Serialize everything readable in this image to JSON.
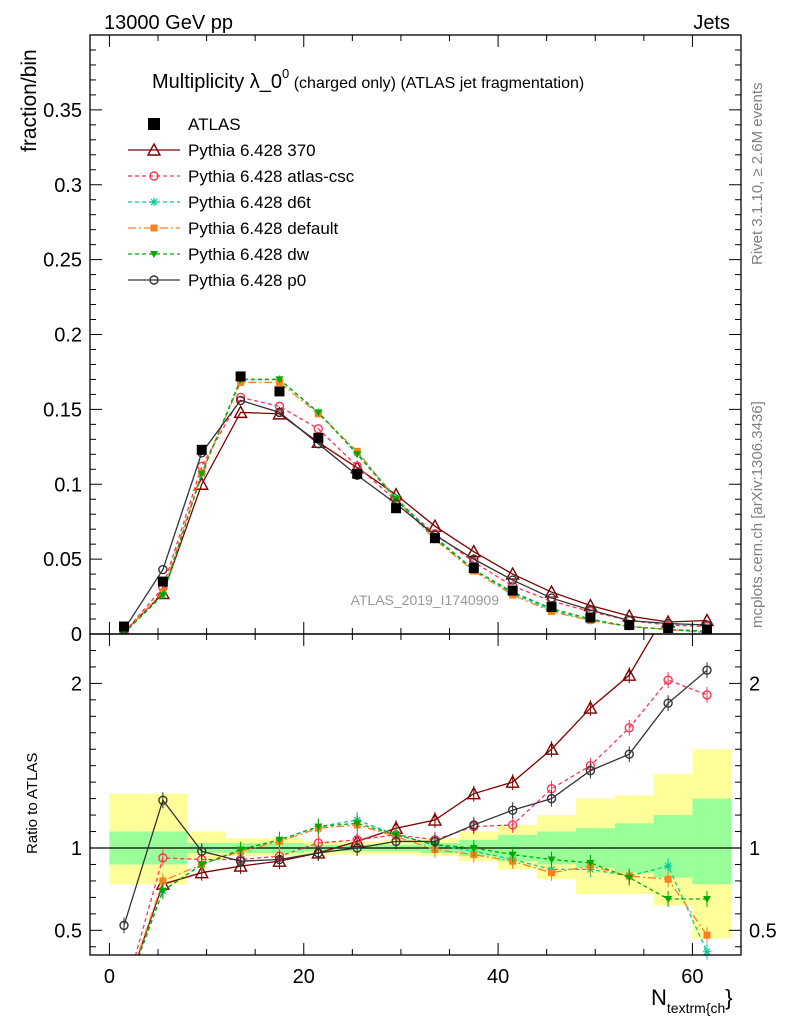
{
  "header": {
    "left": "13000 GeV pp",
    "right": "Jets"
  },
  "side_labels": {
    "rivet": "Rivet 3.1.10, ≥ 2.6M events",
    "mcplots": "mcplots.cern.ch [arXiv:1306.3436]"
  },
  "chart_data": {
    "type": "line",
    "title_main": "Multiplicity λ_0",
    "title_sup": "0",
    "title_rest": " (charged only) (ATLAS jet fragmentation)",
    "watermark": "ATLAS_2019_I1740909",
    "xlabel_main": "N",
    "xlabel_sub": "textrm{ch",
    "xlabel_end": "}",
    "ylabel_top": "fraction/bin",
    "ylabel_ratio": "Ratio to ATLAS",
    "xlim": [
      -2,
      65
    ],
    "ylim_top": [
      0,
      0.4
    ],
    "ylim_ratio": [
      0.35,
      2.3
    ],
    "x_ticks": [
      0,
      20,
      40,
      60
    ],
    "y_ticks_top": [
      0,
      0.05,
      0.1,
      0.15,
      0.2,
      0.25,
      0.3,
      0.35
    ],
    "y_tick_labels_top": [
      "0",
      "0.05",
      "0.1",
      "0.15",
      "0.2",
      "0.25",
      "0.3",
      "0.35"
    ],
    "y_ticks_ratio": [
      0.5,
      1,
      2
    ],
    "y_tick_labels_ratio": [
      "0.5",
      "1",
      "2"
    ],
    "x": [
      1.5,
      5.5,
      9.5,
      13.5,
      17.5,
      21.5,
      25.5,
      29.5,
      33.5,
      37.5,
      41.5,
      45.5,
      49.5,
      53.5,
      57.5,
      61.5
    ],
    "bin_edges": [
      0,
      4,
      8,
      12,
      16,
      20,
      24,
      28,
      32,
      36,
      40,
      44,
      48,
      52,
      56,
      60,
      64
    ],
    "reference": {
      "name": "ATLAS",
      "values": [
        0.005,
        0.035,
        0.123,
        0.172,
        0.162,
        0.131,
        0.107,
        0.084,
        0.064,
        0.044,
        0.029,
        0.018,
        0.011,
        0.006,
        0.004,
        0.003
      ]
    },
    "uncertainty_band": {
      "inner_lo": [
        0.9,
        0.9,
        0.97,
        0.97,
        0.97,
        0.98,
        0.98,
        0.98,
        0.97,
        0.95,
        0.92,
        0.9,
        0.88,
        0.85,
        0.82,
        0.78
      ],
      "inner_hi": [
        1.1,
        1.1,
        1.03,
        1.03,
        1.03,
        1.02,
        1.02,
        1.02,
        1.03,
        1.05,
        1.08,
        1.1,
        1.12,
        1.15,
        1.2,
        1.3
      ],
      "outer_lo": [
        0.78,
        0.78,
        0.93,
        0.95,
        0.95,
        0.96,
        0.96,
        0.96,
        0.95,
        0.92,
        0.87,
        0.81,
        0.72,
        0.72,
        0.65,
        0.45
      ],
      "outer_hi": [
        1.33,
        1.33,
        1.1,
        1.06,
        1.06,
        1.04,
        1.04,
        1.05,
        1.06,
        1.1,
        1.14,
        1.2,
        1.3,
        1.32,
        1.45,
        1.6
      ]
    },
    "series": [
      {
        "name": "Pythia 6.428 370",
        "color": "#800000",
        "marker": "triangle-open",
        "dash": "",
        "values": [
          0.0012,
          0.027,
          0.1,
          0.148,
          0.147,
          0.128,
          0.111,
          0.093,
          0.072,
          0.055,
          0.04,
          0.028,
          0.019,
          0.012,
          0.008,
          0.009
        ],
        "ratio": [
          0.1,
          0.78,
          0.85,
          0.89,
          0.92,
          0.97,
          1.04,
          1.12,
          1.17,
          1.33,
          1.4,
          1.6,
          1.85,
          2.05,
          2.45,
          2.8
        ]
      },
      {
        "name": "Pythia 6.428 atlas-csc",
        "color": "#ff3355",
        "marker": "circle-open",
        "dash": "4,3",
        "values": [
          0.0008,
          0.031,
          0.112,
          0.158,
          0.152,
          0.137,
          0.112,
          0.089,
          0.067,
          0.048,
          0.032,
          0.022,
          0.015,
          0.009,
          0.006,
          0.005
        ],
        "ratio": [
          0.1,
          0.94,
          0.93,
          0.93,
          0.95,
          1.03,
          1.05,
          1.08,
          1.05,
          1.13,
          1.14,
          1.36,
          1.5,
          1.73,
          2.02,
          1.93
        ]
      },
      {
        "name": "Pythia 6.428 d6t",
        "color": "#00cc99",
        "marker": "star",
        "dash": "4,3",
        "values": [
          0.0006,
          0.026,
          0.107,
          0.17,
          0.17,
          0.148,
          0.121,
          0.091,
          0.065,
          0.043,
          0.027,
          0.016,
          0.009,
          0.005,
          0.003,
          0.001
        ],
        "ratio": [
          0.1,
          0.74,
          0.9,
          0.99,
          1.05,
          1.13,
          1.17,
          1.08,
          1.02,
          0.98,
          0.93,
          0.87,
          0.87,
          0.83,
          0.89,
          0.37
        ]
      },
      {
        "name": "Pythia 6.428 default",
        "color": "#ff7f1f",
        "marker": "square",
        "dash": "8,3,2,3",
        "values": [
          0.0007,
          0.028,
          0.108,
          0.168,
          0.168,
          0.147,
          0.122,
          0.09,
          0.063,
          0.042,
          0.026,
          0.015,
          0.009,
          0.005,
          0.003,
          0.001
        ],
        "ratio": [
          0.1,
          0.8,
          0.9,
          0.98,
          1.04,
          1.12,
          1.14,
          1.07,
          0.99,
          0.96,
          0.92,
          0.85,
          0.89,
          0.83,
          0.81,
          0.47
        ]
      },
      {
        "name": "Pythia 6.428 dw",
        "color": "#00aa00",
        "marker": "triangle-down",
        "dash": "4,3",
        "values": [
          0.0006,
          0.026,
          0.107,
          0.17,
          0.17,
          0.148,
          0.12,
          0.09,
          0.064,
          0.043,
          0.028,
          0.017,
          0.01,
          0.005,
          0.003,
          0.002
        ],
        "ratio": [
          0.1,
          0.74,
          0.9,
          0.99,
          1.05,
          1.13,
          1.15,
          1.08,
          1.02,
          1.0,
          0.96,
          0.93,
          0.91,
          0.82,
          0.69,
          0.69
        ]
      },
      {
        "name": "Pythia 6.428 p0",
        "color": "#333333",
        "marker": "circle-open",
        "dash": "",
        "values": [
          0.003,
          0.043,
          0.121,
          0.156,
          0.148,
          0.127,
          0.106,
          0.087,
          0.066,
          0.05,
          0.036,
          0.024,
          0.016,
          0.009,
          0.007,
          0.006
        ],
        "ratio": [
          0.53,
          1.29,
          0.98,
          0.92,
          0.93,
          0.97,
          1.0,
          1.04,
          1.04,
          1.14,
          1.23,
          1.3,
          1.47,
          1.57,
          1.88,
          2.08
        ]
      }
    ]
  }
}
